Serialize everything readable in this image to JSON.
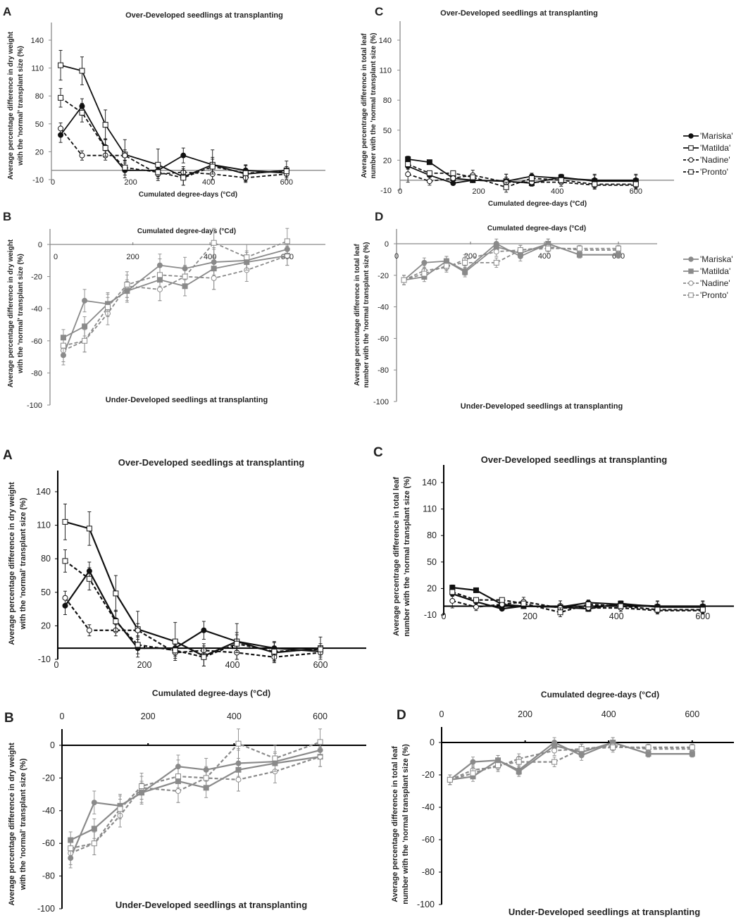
{
  "legend": [
    "'Mariska'",
    "'Matilda'",
    "'Nadine'",
    "'Pronto'"
  ],
  "colors": {
    "over": "#111111",
    "under": "#8a8a8a",
    "axis_top": "#8a8a8a",
    "axis_bottom": "#000000"
  },
  "chart_data": [
    {
      "panel": "A",
      "type": "line",
      "title": "Over-Developed seedlings at transplanting",
      "xlabel": "Cumulated degree-days (°Cd)",
      "ylabel": [
        "Average percentage difference in dry weight",
        "with the 'normal' transplant size (%)"
      ],
      "xticks": [
        "0",
        "200",
        "400",
        "600"
      ],
      "yticks": [
        "140",
        "110",
        "80",
        "50",
        "20",
        "-10"
      ],
      "xlim": [
        0,
        700
      ],
      "ylim": [
        -10,
        160
      ],
      "x": [
        20,
        75,
        135,
        185,
        270,
        335,
        410,
        495,
        600
      ],
      "series": [
        {
          "name": "'Mariska'",
          "values": [
            38,
            69,
            25,
            0,
            0,
            16,
            6,
            0,
            -3
          ],
          "err": [
            8,
            8,
            9,
            8,
            5,
            8,
            8,
            6,
            3
          ]
        },
        {
          "name": "'Matilda'",
          "values": [
            113,
            107,
            49,
            17,
            6,
            -7,
            6,
            -4,
            0
          ],
          "err": [
            16,
            15,
            16,
            16,
            17,
            9,
            16,
            9,
            10
          ]
        },
        {
          "name": "'Nadine'",
          "values": [
            45,
            16,
            16,
            16,
            -4,
            -2,
            -4,
            -8,
            -4
          ],
          "err": [
            6,
            5,
            5,
            6,
            5,
            6,
            6,
            4,
            4
          ]
        },
        {
          "name": "'Pronto'",
          "values": [
            78,
            62,
            24,
            3,
            -2,
            -8,
            4,
            -3,
            -1
          ],
          "err": [
            10,
            10,
            9,
            8,
            5,
            8,
            8,
            8,
            5
          ]
        }
      ]
    },
    {
      "panel": "B",
      "type": "line",
      "title": "Under-Developed  seedlings at transplanting",
      "xlabel": "Cumulated degree-days (°Cd)",
      "ylabel": [
        "Average percentage difference in dry weight",
        "with the 'normal' transplant size (%)"
      ],
      "xticks": [
        "0",
        "200",
        "400",
        "600"
      ],
      "yticks": [
        "0",
        "-20",
        "-40",
        "-60",
        "-80",
        "-100"
      ],
      "xlim": [
        0,
        700
      ],
      "ylim": [
        -100,
        10
      ],
      "x": [
        20,
        75,
        135,
        185,
        270,
        335,
        410,
        495,
        600
      ],
      "series": [
        {
          "name": "'Mariska'",
          "values": [
            -69,
            -35,
            -37,
            -29,
            -13,
            -15,
            -11,
            -10,
            -3
          ],
          "err": [
            6,
            7,
            6,
            6,
            7,
            7,
            8,
            6,
            5
          ]
        },
        {
          "name": "'Matilda'",
          "values": [
            -58,
            -51,
            -37,
            -29,
            -22,
            -26,
            -15,
            -11,
            -7
          ],
          "err": [
            5,
            6,
            7,
            7,
            13,
            6,
            13,
            6,
            6
          ]
        },
        {
          "name": "'Nadine'",
          "values": [
            -66,
            -60,
            -43,
            -26,
            -28,
            -20,
            -21,
            -16,
            -7
          ],
          "err": [
            7,
            7,
            7,
            7,
            7,
            6,
            7,
            7,
            6
          ]
        },
        {
          "name": "'Pronto'",
          "values": [
            -63,
            -60,
            -39,
            -25,
            -19,
            -20,
            1,
            -8,
            2
          ],
          "err": [
            6,
            7,
            6,
            8,
            7,
            7,
            9,
            8,
            8
          ]
        }
      ]
    },
    {
      "panel": "C",
      "type": "line",
      "title": "Over-Developed seedlings at transplanting",
      "xlabel": "Cumulated degree-days (°Cd)",
      "ylabel": [
        "Average percentrage difference in total leaf",
        "number with the 'normal transplant size (%)"
      ],
      "xticks": [
        "0",
        "200",
        "400",
        "600"
      ],
      "yticks": [
        "140",
        "110",
        "80",
        "50",
        "20",
        "-10"
      ],
      "xlim": [
        0,
        700
      ],
      "ylim": [
        -10,
        160
      ],
      "x": [
        20,
        75,
        135,
        185,
        270,
        335,
        410,
        495,
        600
      ],
      "series": [
        {
          "name": "'Mariska'",
          "values": [
            14,
            5,
            -3,
            0,
            -1,
            4,
            2,
            0,
            0
          ],
          "err": [
            3,
            2,
            2,
            2,
            7,
            3,
            3,
            6,
            6
          ]
        },
        {
          "name": "'Matilda'",
          "values": [
            21,
            18,
            2,
            0,
            -1,
            -3,
            3,
            -1,
            -1
          ],
          "err": [
            3,
            2,
            2,
            2,
            7,
            3,
            3,
            6,
            6
          ]
        },
        {
          "name": "'Nadine'",
          "values": [
            6,
            -1,
            2,
            5,
            -2,
            -2,
            -2,
            -5,
            -5
          ],
          "err": [
            8,
            4,
            3,
            5,
            5,
            3,
            4,
            4,
            4
          ]
        },
        {
          "name": "'Pronto'",
          "values": [
            16,
            7,
            7,
            3,
            -7,
            2,
            0,
            -4,
            -4
          ],
          "err": [
            3,
            2,
            2,
            2,
            5,
            3,
            3,
            4,
            4
          ]
        }
      ]
    },
    {
      "panel": "D",
      "type": "line",
      "title": "Under-Developed  seedlings at transplanting",
      "xlabel": "Cumulated degree-days (°Cd)",
      "ylabel": [
        "Average percentage difference in total leaf",
        "number with the 'normal transplant size (%)"
      ],
      "xticks": [
        "0",
        "200",
        "400",
        "600"
      ],
      "yticks": [
        "0",
        "-20",
        "-40",
        "-60",
        "-80",
        "-100"
      ],
      "xlim": [
        0,
        700
      ],
      "ylim": [
        -100,
        10
      ],
      "x": [
        20,
        75,
        135,
        185,
        270,
        335,
        410,
        495,
        600
      ],
      "series": [
        {
          "name": "'Mariska'",
          "values": [
            -23,
            -12,
            -11,
            -17,
            0,
            -8,
            0,
            -7,
            -7
          ],
          "err": [
            3,
            3,
            3,
            3,
            3,
            3,
            3,
            2,
            2
          ]
        },
        {
          "name": "'Matilda'",
          "values": [
            -23,
            -21,
            -11,
            -18,
            -2,
            -6,
            0,
            -7,
            -7
          ],
          "err": [
            3,
            3,
            3,
            3,
            3,
            3,
            3,
            2,
            2
          ]
        },
        {
          "name": "'Nadine'",
          "values": [
            -23,
            -17,
            -15,
            -10,
            -5,
            -4,
            -2,
            -4,
            -4
          ],
          "err": [
            3,
            3,
            3,
            3,
            3,
            3,
            3,
            2,
            2
          ]
        },
        {
          "name": "'Pronto'",
          "values": [
            -23,
            -19,
            -14,
            -12,
            -12,
            -4,
            -3,
            -3,
            -3
          ],
          "err": [
            3,
            3,
            3,
            3,
            3,
            3,
            3,
            2,
            2
          ]
        }
      ]
    }
  ]
}
